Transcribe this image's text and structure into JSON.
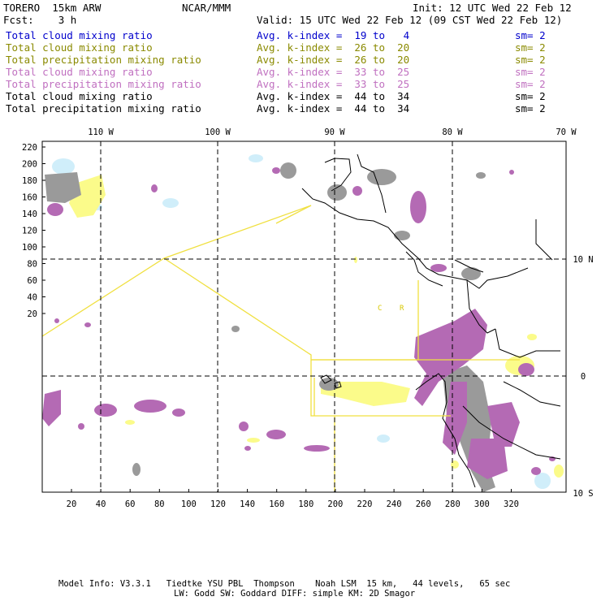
{
  "header": {
    "model": "TORERO  15km ARW",
    "center": "NCAR/MMM",
    "init": "Init: 12 UTC Wed 22 Feb 12",
    "fcst": "Fcst:    3 h",
    "valid": "Valid: 15 UTC Wed 22 Feb 12 (09 CST Wed 22 Feb 12)"
  },
  "legend": [
    {
      "field": "Total cloud mixing ratio",
      "k": "Avg. k-index =  19 to   4",
      "sm": "sm= 2",
      "color": "#0000cc"
    },
    {
      "field": "Total cloud mixing ratio",
      "k": "Avg. k-index =  26 to  20",
      "sm": "sm= 2",
      "color": "#8a8a00"
    },
    {
      "field": "Total precipitation mixing ratio",
      "k": "Avg. k-index =  26 to  20",
      "sm": "sm= 2",
      "color": "#8a8a00"
    },
    {
      "field": "Total cloud mixing ratio",
      "k": "Avg. k-index =  33 to  25",
      "sm": "sm= 2",
      "color": "#c070c0"
    },
    {
      "field": "Total precipitation mixing ratio",
      "k": "Avg. k-index =  33 to  25",
      "sm": "sm= 2",
      "color": "#c070c0"
    },
    {
      "field": "Total cloud mixing ratio",
      "k": "Avg. k-index =  44 to  34",
      "sm": "sm= 2",
      "color": "#000000"
    },
    {
      "field": "Total precipitation mixing ratio",
      "k": "Avg. k-index =  44 to  34",
      "sm": "sm= 2",
      "color": "#000000"
    }
  ],
  "map": {
    "lon_labels": [
      "110 W",
      "100 W",
      "90 W",
      "80 W",
      "70 W"
    ],
    "lat_labels": [
      "10 N",
      "0",
      "10 S"
    ],
    "y_ticks": [
      "220",
      "200",
      "180",
      "160",
      "140",
      "120",
      "100",
      "80",
      "60",
      "40",
      "20"
    ],
    "x_ticks": [
      "20",
      "40",
      "60",
      "80",
      "100",
      "120",
      "140",
      "160",
      "180",
      "200",
      "220",
      "240",
      "260",
      "280",
      "300",
      "320"
    ],
    "region_labels": [
      "C",
      "R"
    ],
    "colors": {
      "light_blue": "#d0eefa",
      "yellow": "#fbfb8a",
      "magenta": "#b46ab4",
      "gray": "#9a9a9a",
      "yellow_line": "#f0e040",
      "grid": "#000000"
    }
  },
  "footer": {
    "line1": "Model Info: V3.3.1   Tiedtke YSU PBL  Thompson    Noah LSM  15 km,   44 levels,   65 sec",
    "line2": "LW: Godd SW: Goddard DIFF: simple KM: 2D Smagor"
  }
}
